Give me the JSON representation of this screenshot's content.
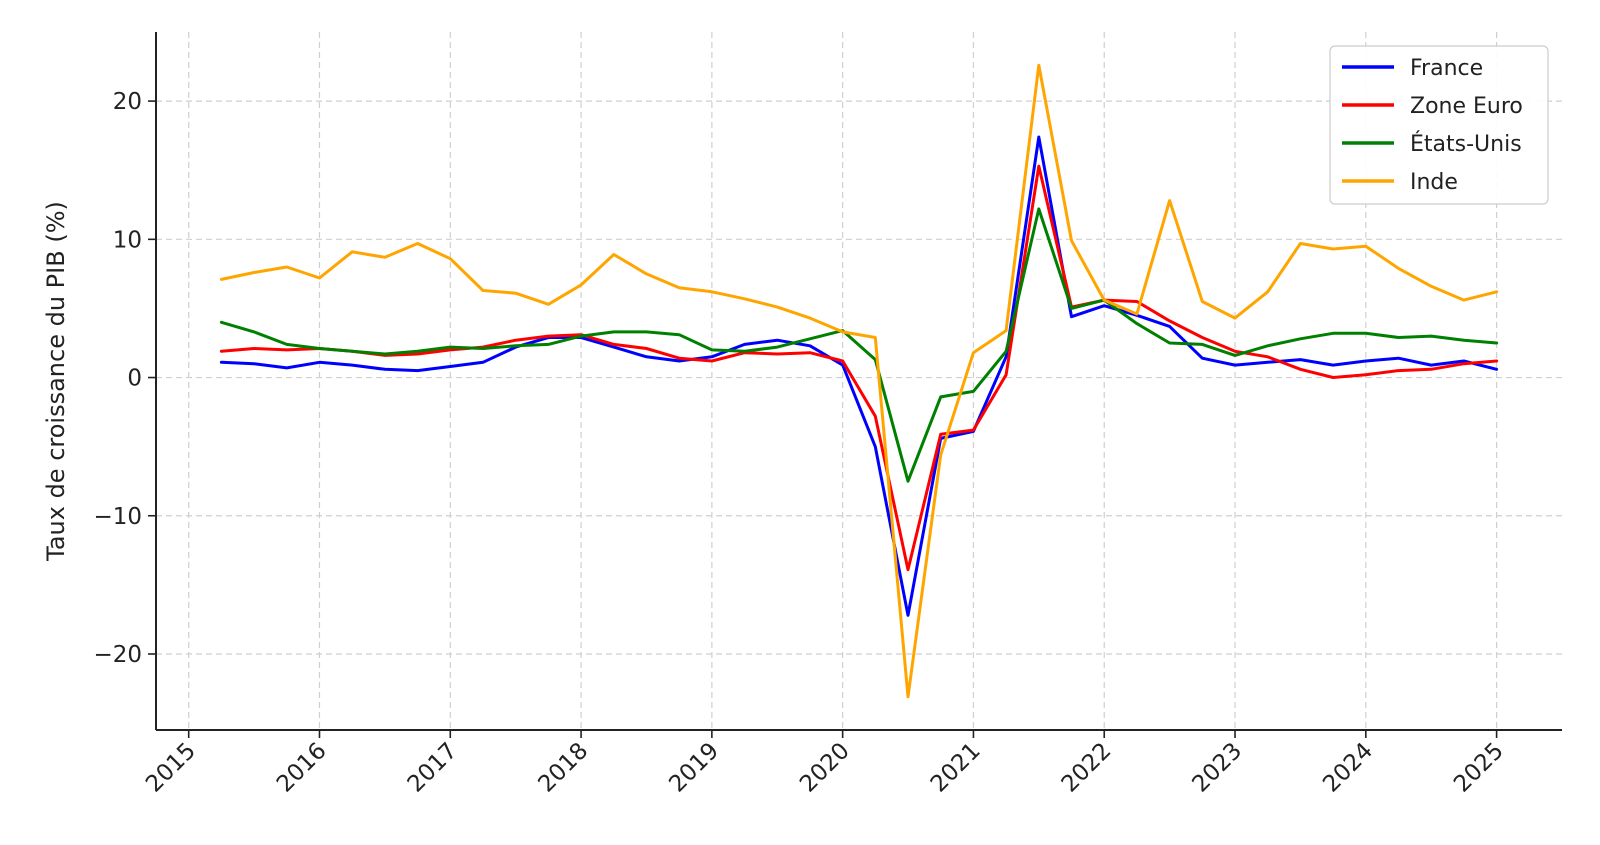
{
  "chart_data": {
    "type": "line",
    "title": "",
    "xlabel": "",
    "ylabel": "Taux de croissance du PIB (%)",
    "xlim": [
      2014.75,
      2025.5
    ],
    "ylim": [
      -25.5,
      25
    ],
    "x_ticks": [
      "2015",
      "2016",
      "2017",
      "2018",
      "2019",
      "2020",
      "2021",
      "2022",
      "2023",
      "2024",
      "2025"
    ],
    "y_ticks": [
      {
        "value": 20,
        "label": "20"
      },
      {
        "value": 10,
        "label": "10"
      },
      {
        "value": 0,
        "label": "0"
      },
      {
        "value": -10,
        "label": "−10"
      },
      {
        "value": -20,
        "label": "−20"
      }
    ],
    "grid": true,
    "legend_position": "top-right",
    "x": [
      2015.25,
      2015.5,
      2015.75,
      2016.0,
      2016.25,
      2016.5,
      2016.75,
      2017.0,
      2017.25,
      2017.5,
      2017.75,
      2018.0,
      2018.25,
      2018.5,
      2018.75,
      2019.0,
      2019.25,
      2019.5,
      2019.75,
      2020.0,
      2020.25,
      2020.5,
      2020.75,
      2021.0,
      2021.25,
      2021.5,
      2021.75,
      2022.0,
      2022.25,
      2022.5,
      2022.75,
      2023.0,
      2023.25,
      2023.5,
      2023.75,
      2024.0,
      2024.25,
      2024.5,
      2024.75,
      2025.0
    ],
    "series": [
      {
        "name": "France",
        "color": "#0000ff",
        "values": [
          1.1,
          1.0,
          0.7,
          1.1,
          0.9,
          0.6,
          0.5,
          0.8,
          1.1,
          2.2,
          2.9,
          2.9,
          2.2,
          1.5,
          1.2,
          1.5,
          2.4,
          2.7,
          2.3,
          0.9,
          -5.0,
          -17.2,
          -4.4,
          -3.9,
          1.5,
          17.4,
          4.4,
          5.2,
          4.5,
          3.7,
          1.4,
          0.9,
          1.1,
          1.3,
          0.9,
          1.2,
          1.4,
          0.9,
          1.2,
          0.6
        ]
      },
      {
        "name": "Zone Euro",
        "color": "#ff0000",
        "values": [
          1.9,
          2.1,
          2.0,
          2.1,
          1.9,
          1.6,
          1.7,
          2.0,
          2.2,
          2.7,
          3.0,
          3.1,
          2.4,
          2.1,
          1.4,
          1.2,
          1.8,
          1.7,
          1.8,
          1.2,
          -2.8,
          -13.9,
          -4.1,
          -3.8,
          0.2,
          15.3,
          5.1,
          5.6,
          5.5,
          4.1,
          2.9,
          1.9,
          1.5,
          0.6,
          0.0,
          0.2,
          0.5,
          0.6,
          1.0,
          1.2
        ]
      },
      {
        "name": "États-Unis",
        "color": "#008000",
        "values": [
          4.0,
          3.3,
          2.4,
          2.1,
          1.9,
          1.7,
          1.9,
          2.2,
          2.1,
          2.3,
          2.4,
          3.0,
          3.3,
          3.3,
          3.1,
          2.0,
          1.9,
          2.2,
          2.8,
          3.4,
          1.3,
          -7.5,
          -1.4,
          -1.0,
          1.9,
          12.2,
          5.0,
          5.6,
          3.9,
          2.5,
          2.4,
          1.6,
          2.3,
          2.8,
          3.2,
          3.2,
          2.9,
          3.0,
          2.7,
          2.5
        ]
      },
      {
        "name": "Inde",
        "color": "#ffa500",
        "values": [
          7.1,
          7.6,
          8.0,
          7.2,
          9.1,
          8.7,
          9.7,
          8.6,
          6.3,
          6.1,
          5.3,
          6.7,
          8.9,
          7.5,
          6.5,
          6.2,
          5.7,
          5.1,
          4.3,
          3.3,
          2.9,
          -23.1,
          -5.6,
          1.8,
          3.4,
          22.6,
          9.9,
          5.6,
          4.6,
          12.8,
          5.5,
          4.3,
          6.2,
          9.7,
          9.3,
          9.5,
          7.9,
          6.6,
          5.6,
          6.2
        ]
      }
    ]
  }
}
